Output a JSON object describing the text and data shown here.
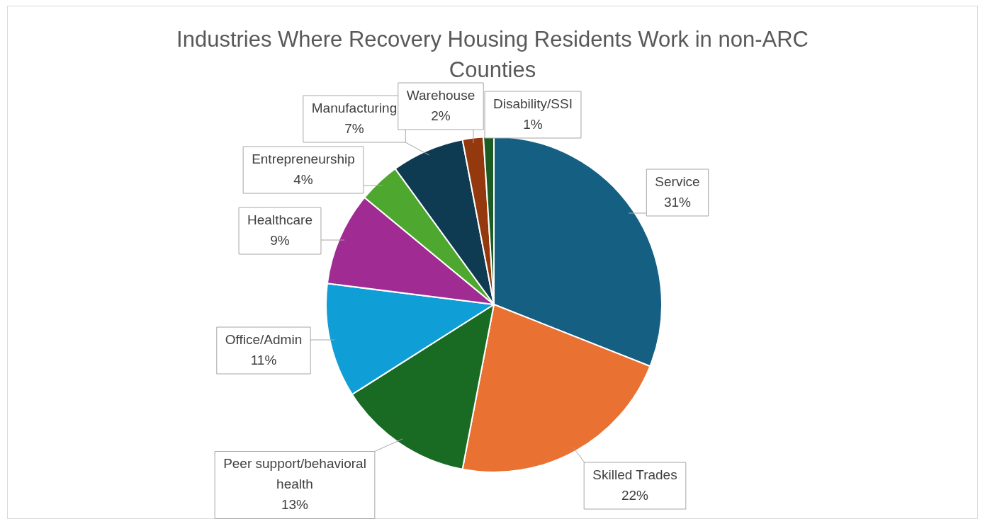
{
  "chart_data": {
    "type": "pie",
    "title": "Industries Where Recovery Housing Residents Work in non-ARC Counties",
    "categories": [
      "Service",
      "Skilled Trades",
      "Peer support/behavioral health",
      "Office/Admin",
      "Healthcare",
      "Entrepreneurship",
      "Manufacturing",
      "Warehouse",
      "Disability/SSI"
    ],
    "values": [
      31,
      22,
      13,
      11,
      9,
      4,
      7,
      2,
      1
    ],
    "value_labels": [
      "31%",
      "22%",
      "13%",
      "11%",
      "9%",
      "4%",
      "7%",
      "2%",
      "1%"
    ],
    "colors": [
      "#156082",
      "#e97132",
      "#196b24",
      "#0f9ed5",
      "#a02b93",
      "#4ea72e",
      "#0e3a52",
      "#94380e",
      "#1a5c22"
    ],
    "legend": false
  }
}
